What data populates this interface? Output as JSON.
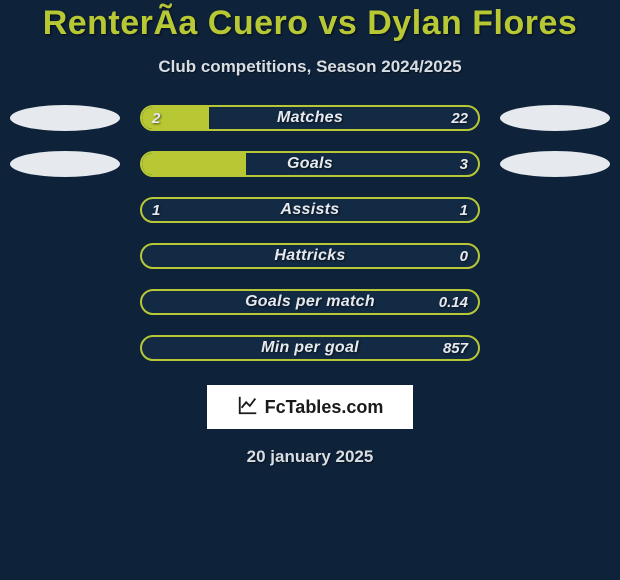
{
  "colors": {
    "page_bg": "#0e223a",
    "title": "#b8c834",
    "subtitle": "#d8dde3",
    "bar_border": "#b8c834",
    "bar_fill": "#b8c834",
    "bar_inner_bg": "#132a44",
    "label_text": "#e6e9ed",
    "value_text": "#e6e9ed",
    "oval_left": "#e6e9ed",
    "oval_right": "#e6e9ed",
    "brand_bg": "#ffffff",
    "brand_text": "#1a1a1a",
    "brand_icon": "#1a1a1a",
    "footer_text": "#d8dde3"
  },
  "title": "RenterÃ­a Cuero vs Dylan Flores",
  "subtitle": "Club competitions, Season 2024/2025",
  "brand": "FcTables.com",
  "footer_date": "20 january 2025",
  "stats": [
    {
      "label": "Matches",
      "left_value": "2",
      "right_value": "22",
      "left_fill_pct": 20,
      "right_fill_pct": 0,
      "show_ovals": true
    },
    {
      "label": "Goals",
      "left_value": "",
      "right_value": "3",
      "left_fill_pct": 31,
      "right_fill_pct": 0,
      "show_ovals": true
    },
    {
      "label": "Assists",
      "left_value": "1",
      "right_value": "1",
      "left_fill_pct": 0,
      "right_fill_pct": 0,
      "show_ovals": false
    },
    {
      "label": "Hattricks",
      "left_value": "",
      "right_value": "0",
      "left_fill_pct": 0,
      "right_fill_pct": 0,
      "show_ovals": false
    },
    {
      "label": "Goals per match",
      "left_value": "",
      "right_value": "0.14",
      "left_fill_pct": 0,
      "right_fill_pct": 0,
      "show_ovals": false
    },
    {
      "label": "Min per goal",
      "left_value": "",
      "right_value": "857",
      "left_fill_pct": 0,
      "right_fill_pct": 0,
      "show_ovals": false
    }
  ]
}
